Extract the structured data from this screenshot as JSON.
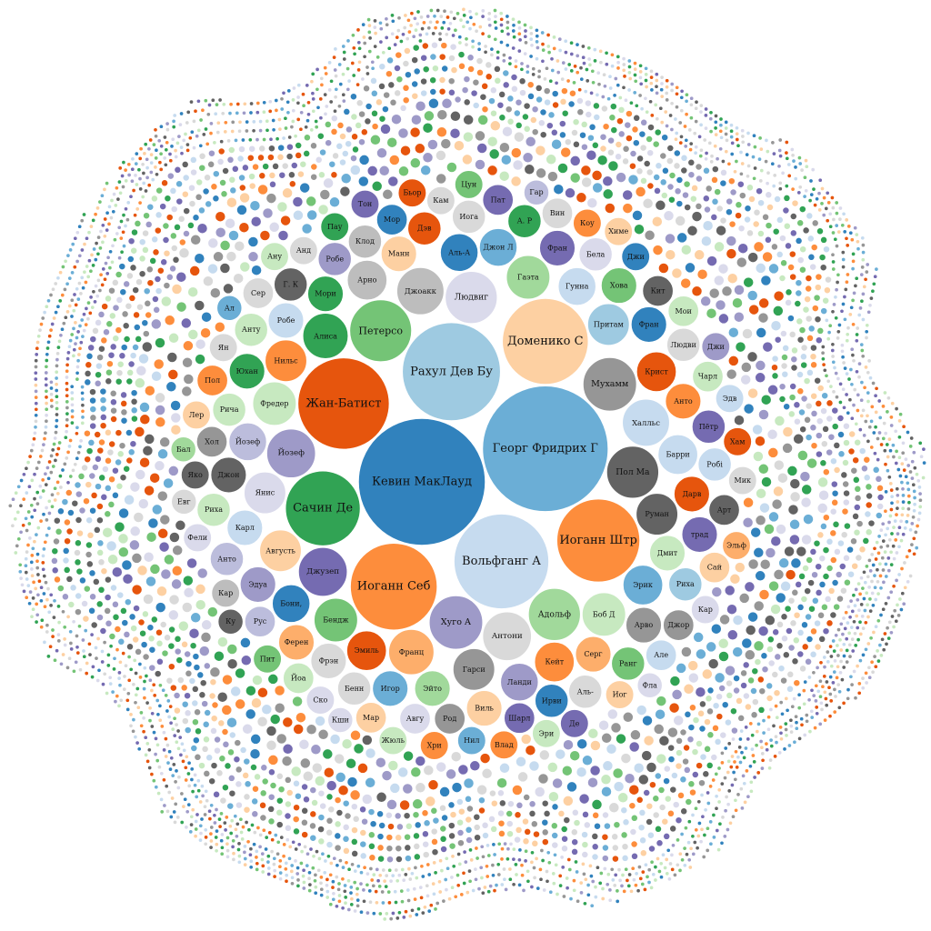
{
  "chart_data": {
    "type": "bubble",
    "title": "",
    "layout": "circular packing",
    "palette": {
      "blue_dark": "#3182bd",
      "blue_mid": "#6baed6",
      "blue_light": "#c6dbef",
      "orange_dark": "#e6550d",
      "orange_mid": "#fd8d3c",
      "orange_light": "#fdd0a2",
      "green_dark": "#31a354",
      "green_mid": "#74c476",
      "green_light": "#c7e9c0",
      "purple_dark": "#756bb1",
      "purple_mid": "#9e9ac8",
      "purple_light": "#dadaeb",
      "grey_dark": "#636363",
      "grey_mid": "#969696",
      "grey_light": "#d9d9d9"
    },
    "bubbles": [
      {
        "label": "Кевин МакЛауд",
        "value": 100,
        "color": "#3182bd"
      },
      {
        "label": "Георг Фридрих Г",
        "value": 98,
        "color": "#6baed6"
      },
      {
        "label": "Рахул Дев Бу",
        "value": 60,
        "color": "#9ecae1"
      },
      {
        "label": "Вольфганг А",
        "value": 56,
        "color": "#c6dbef"
      },
      {
        "label": "Жан-Батист",
        "value": 52,
        "color": "#e6550d"
      },
      {
        "label": "Иоганн Себ",
        "value": 47,
        "color": "#fd8d3c"
      },
      {
        "label": "Доменико С",
        "value": 46,
        "color": "#fdd0a2"
      },
      {
        "label": "Иоганн Штр",
        "value": 43,
        "color": "#fd8d3c"
      },
      {
        "label": "Сачин Де",
        "value": 35,
        "color": "#31a354"
      },
      {
        "label": "Петерсо",
        "value": 24,
        "color": "#74c476"
      },
      {
        "label": "Хуго А",
        "value": 18,
        "color": "#9e9ac8"
      },
      {
        "label": "Мухамм",
        "value": 18,
        "color": "#969696"
      },
      {
        "label": "Пол Ма",
        "value": 17,
        "color": "#636363"
      },
      {
        "label": "Людвиг",
        "value": 17,
        "color": "#dadaeb"
      },
      {
        "label": "Адольф",
        "value": 17,
        "color": "#a1d99b"
      },
      {
        "label": "Антони",
        "value": 15,
        "color": "#d9d9d9"
      },
      {
        "label": "Йозеф",
        "value": 15,
        "color": "#9e9ac8"
      },
      {
        "label": "Джузеп",
        "value": 15,
        "color": "#756bb1"
      },
      {
        "label": "Джоакк",
        "value": 14,
        "color": "#bdbdbd"
      },
      {
        "label": "Халльс",
        "value": 14,
        "color": "#c6dbef"
      },
      {
        "label": "Франц",
        "value": 13,
        "color": "#fdae6b"
      },
      {
        "label": "Алиса",
        "value": 13,
        "color": "#31a354"
      },
      {
        "label": "Бендж",
        "value": 12,
        "color": "#74c476"
      },
      {
        "label": "Гаэта",
        "value": 12,
        "color": "#a1d99b"
      },
      {
        "label": "Боб Д",
        "value": 12,
        "color": "#c7e9c0"
      },
      {
        "label": "Фредер",
        "value": 12,
        "color": "#c7e9c0"
      },
      {
        "label": "Руман",
        "value": 11,
        "color": "#636363"
      },
      {
        "label": "Гарси",
        "value": 11,
        "color": "#969696"
      },
      {
        "label": "Янис",
        "value": 11,
        "color": "#dadaeb"
      },
      {
        "label": "Августь",
        "value": 11,
        "color": "#fdd0a2"
      },
      {
        "label": "Притам",
        "value": 11,
        "color": "#9ecae1"
      },
      {
        "label": "Нильс",
        "value": 11,
        "color": "#fd8d3c"
      },
      {
        "label": "Эмиль",
        "value": 10,
        "color": "#e6550d"
      },
      {
        "label": "Арно",
        "value": 10,
        "color": "#bdbdbd"
      },
      {
        "label": "Эрик",
        "value": 10,
        "color": "#6baed6"
      },
      {
        "label": "Барри",
        "value": 10,
        "color": "#c6dbef"
      },
      {
        "label": "Кейт",
        "value": 10,
        "color": "#fd8d3c"
      },
      {
        "label": "Крист",
        "value": 10,
        "color": "#e6550d"
      },
      {
        "label": "Гунна",
        "value": 9,
        "color": "#c6dbef"
      },
      {
        "label": "Аль-А",
        "value": 9,
        "color": "#3182bd"
      },
      {
        "label": "Йозеф",
        "value": 9,
        "color": "#bcbddc"
      },
      {
        "label": "Ланди",
        "value": 9,
        "color": "#9e9ac8"
      },
      {
        "label": "Дмит",
        "value": 8,
        "color": "#c7e9c0"
      },
      {
        "label": "Эйто",
        "value": 8,
        "color": "#a1d99b"
      },
      {
        "label": "Мори",
        "value": 8,
        "color": "#31a354"
      },
      {
        "label": "Манн",
        "value": 8,
        "color": "#fdd0a2"
      },
      {
        "label": "Серг",
        "value": 8,
        "color": "#fdae6b"
      },
      {
        "label": "Анто",
        "value": 8,
        "color": "#fd8d3c"
      },
      {
        "label": "Дарв",
        "value": 8,
        "color": "#e6550d"
      },
      {
        "label": "Карл",
        "value": 8,
        "color": "#c6dbef"
      },
      {
        "label": "Робе",
        "value": 8,
        "color": "#c6dbef"
      },
      {
        "label": "Игор",
        "value": 8,
        "color": "#6baed6"
      },
      {
        "label": "Фран",
        "value": 8,
        "color": "#3182bd"
      },
      {
        "label": "Фрэн",
        "value": 8,
        "color": "#d9d9d9"
      },
      {
        "label": "Дэв",
        "value": 7,
        "color": "#e6550d"
      },
      {
        "label": "Джон",
        "value": 8,
        "color": "#636363"
      },
      {
        "label": "Арво",
        "value": 8,
        "color": "#969696"
      },
      {
        "label": "Бони,",
        "value": 9,
        "color": "#3182bd"
      },
      {
        "label": "Джон Л",
        "value": 9,
        "color": "#6baed6"
      },
      {
        "label": "Эдуа",
        "value": 8,
        "color": "#9e9ac8"
      },
      {
        "label": "Фран",
        "value": 8,
        "color": "#756bb1"
      },
      {
        "label": "Хова",
        "value": 8,
        "color": "#74c476"
      },
      {
        "label": "Юхан",
        "value": 8,
        "color": "#31a354"
      },
      {
        "label": "Виль",
        "value": 8,
        "color": "#fdd0a2"
      },
      {
        "label": "Ферен",
        "value": 8,
        "color": "#fdae6b"
      },
      {
        "label": "Рича",
        "value": 7,
        "color": "#c7e9c0"
      },
      {
        "label": "Пётр",
        "value": 7,
        "color": "#756bb1"
      },
      {
        "label": "Робе",
        "value": 7,
        "color": "#9e9ac8"
      },
      {
        "label": "Бенн",
        "value": 7,
        "color": "#d9d9d9"
      },
      {
        "label": "трад",
        "value": 8,
        "color": "#756bb1"
      },
      {
        "label": "Клод",
        "value": 7,
        "color": "#bdbdbd"
      },
      {
        "label": "Ирви",
        "value": 7,
        "color": "#3182bd"
      },
      {
        "label": "Риха",
        "value": 7,
        "color": "#9ecae1"
      },
      {
        "label": "Робі",
        "value": 7,
        "color": "#c6dbef"
      },
      {
        "label": "Бела",
        "value": 7,
        "color": "#dadaeb"
      },
      {
        "label": "Людви",
        "value": 7,
        "color": "#d9d9d9"
      },
      {
        "label": "Иога",
        "value": 7,
        "color": "#d9d9d9"
      },
      {
        "label": "Аль-",
        "value": 7,
        "color": "#d9d9d9"
      },
      {
        "label": "Г. К",
        "value": 7,
        "color": "#636363"
      },
      {
        "label": "А. Р",
        "value": 7,
        "color": "#31a354"
      },
      {
        "label": "Ранг",
        "value": 7,
        "color": "#74c476"
      },
      {
        "label": "Анту",
        "value": 7,
        "color": "#c7e9c0"
      },
      {
        "label": "Риха",
        "value": 7,
        "color": "#c7e9c0"
      },
      {
        "label": "Род",
        "value": 6,
        "color": "#969696"
      },
      {
        "label": "Хол",
        "value": 6,
        "color": "#969696"
      },
      {
        "label": "Анто",
        "value": 7,
        "color": "#bcbddc"
      },
      {
        "label": "Авгу",
        "value": 6,
        "color": "#dadaeb"
      },
      {
        "label": "Шарл",
        "value": 6,
        "color": "#756bb1"
      },
      {
        "label": "Рус",
        "value": 6,
        "color": "#bcbddc"
      },
      {
        "label": "Чарл",
        "value": 6,
        "color": "#c7e9c0"
      },
      {
        "label": "Мор",
        "value": 6,
        "color": "#3182bd"
      },
      {
        "label": "Кит",
        "value": 6,
        "color": "#636363"
      },
      {
        "label": "Арт",
        "value": 6,
        "color": "#636363"
      },
      {
        "label": "Джор",
        "value": 6,
        "color": "#969696"
      },
      {
        "label": "Кам",
        "value": 5,
        "color": "#d9d9d9"
      },
      {
        "label": "Мар",
        "value": 6,
        "color": "#fdd0a2"
      },
      {
        "label": "Пол",
        "value": 6,
        "color": "#fd8d3c"
      },
      {
        "label": "Сай",
        "value": 6,
        "color": "#fdd0a2"
      },
      {
        "label": "Йоа",
        "value": 6,
        "color": "#c7e9c0"
      },
      {
        "label": "Мои",
        "value": 6,
        "color": "#c7e9c0"
      },
      {
        "label": "Пат",
        "value": 6,
        "color": "#756bb1"
      },
      {
        "label": "Але",
        "value": 6,
        "color": "#c6dbef"
      },
      {
        "label": "Вин",
        "value": 6,
        "color": "#d9d9d9"
      },
      {
        "label": "Сер",
        "value": 6,
        "color": "#d9d9d9"
      },
      {
        "label": "Яко",
        "value": 5,
        "color": "#636363"
      },
      {
        "label": "Кар",
        "value": 5,
        "color": "#bdbdbd"
      },
      {
        "label": "Ян",
        "value": 5,
        "color": "#d9d9d9"
      },
      {
        "label": "Анд",
        "value": 5,
        "color": "#d9d9d9"
      },
      {
        "label": "Джи",
        "value": 5,
        "color": "#3182bd"
      },
      {
        "label": "Нил",
        "value": 5,
        "color": "#6baed6"
      },
      {
        "label": "Эдв",
        "value": 5,
        "color": "#c6dbef"
      },
      {
        "label": "Ку",
        "value": 4,
        "color": "#636363"
      },
      {
        "label": "Хам",
        "value": 5,
        "color": "#e6550d"
      },
      {
        "label": "Коу",
        "value": 5,
        "color": "#fd8d3c"
      },
      {
        "label": "Ско",
        "value": 5,
        "color": "#dadaeb"
      },
      {
        "label": "Иог",
        "value": 5,
        "color": "#fdd0a2"
      },
      {
        "label": "Лер",
        "value": 5,
        "color": "#fdd0a2"
      },
      {
        "label": "Пау",
        "value": 5,
        "color": "#31a354"
      },
      {
        "label": "Пит",
        "value": 5,
        "color": "#74c476"
      },
      {
        "label": "Фели",
        "value": 5,
        "color": "#dadaeb"
      },
      {
        "label": "Эри",
        "value": 5,
        "color": "#c7e9c0"
      },
      {
        "label": "Мик",
        "value": 5,
        "color": "#d9d9d9"
      },
      {
        "label": "Де",
        "value": 5,
        "color": "#756bb1"
      },
      {
        "label": "Джи",
        "value": 5,
        "color": "#9e9ac8"
      },
      {
        "label": "Кар",
        "value": 5,
        "color": "#dadaeb"
      },
      {
        "label": "Кши",
        "value": 4,
        "color": "#dadaeb"
      },
      {
        "label": "Хри",
        "value": 5,
        "color": "#fd8d3c"
      },
      {
        "label": "Влад",
        "value": 5,
        "color": "#fd8d3c"
      },
      {
        "label": "Бьор",
        "value": 5,
        "color": "#e6550d"
      },
      {
        "label": "Эльф",
        "value": 5,
        "color": "#fdae6b"
      },
      {
        "label": "Химе",
        "value": 5,
        "color": "#fdd0a2"
      },
      {
        "label": "Жюль",
        "value": 5,
        "color": "#c7e9c0"
      },
      {
        "label": "Тон",
        "value": 5,
        "color": "#756bb1"
      },
      {
        "label": "Цун",
        "value": 5,
        "color": "#74c476"
      },
      {
        "label": "Бал",
        "value": 4,
        "color": "#a1d99b"
      },
      {
        "label": "Евг",
        "value": 4,
        "color": "#d9d9d9"
      },
      {
        "label": "Гар",
        "value": 4,
        "color": "#bcbddc"
      },
      {
        "label": "Ану",
        "value": 5,
        "color": "#c7e9c0"
      },
      {
        "label": "Фла",
        "value": 4,
        "color": "#dadaeb"
      },
      {
        "label": "Ал",
        "value": 4,
        "color": "#6baed6"
      }
    ]
  }
}
